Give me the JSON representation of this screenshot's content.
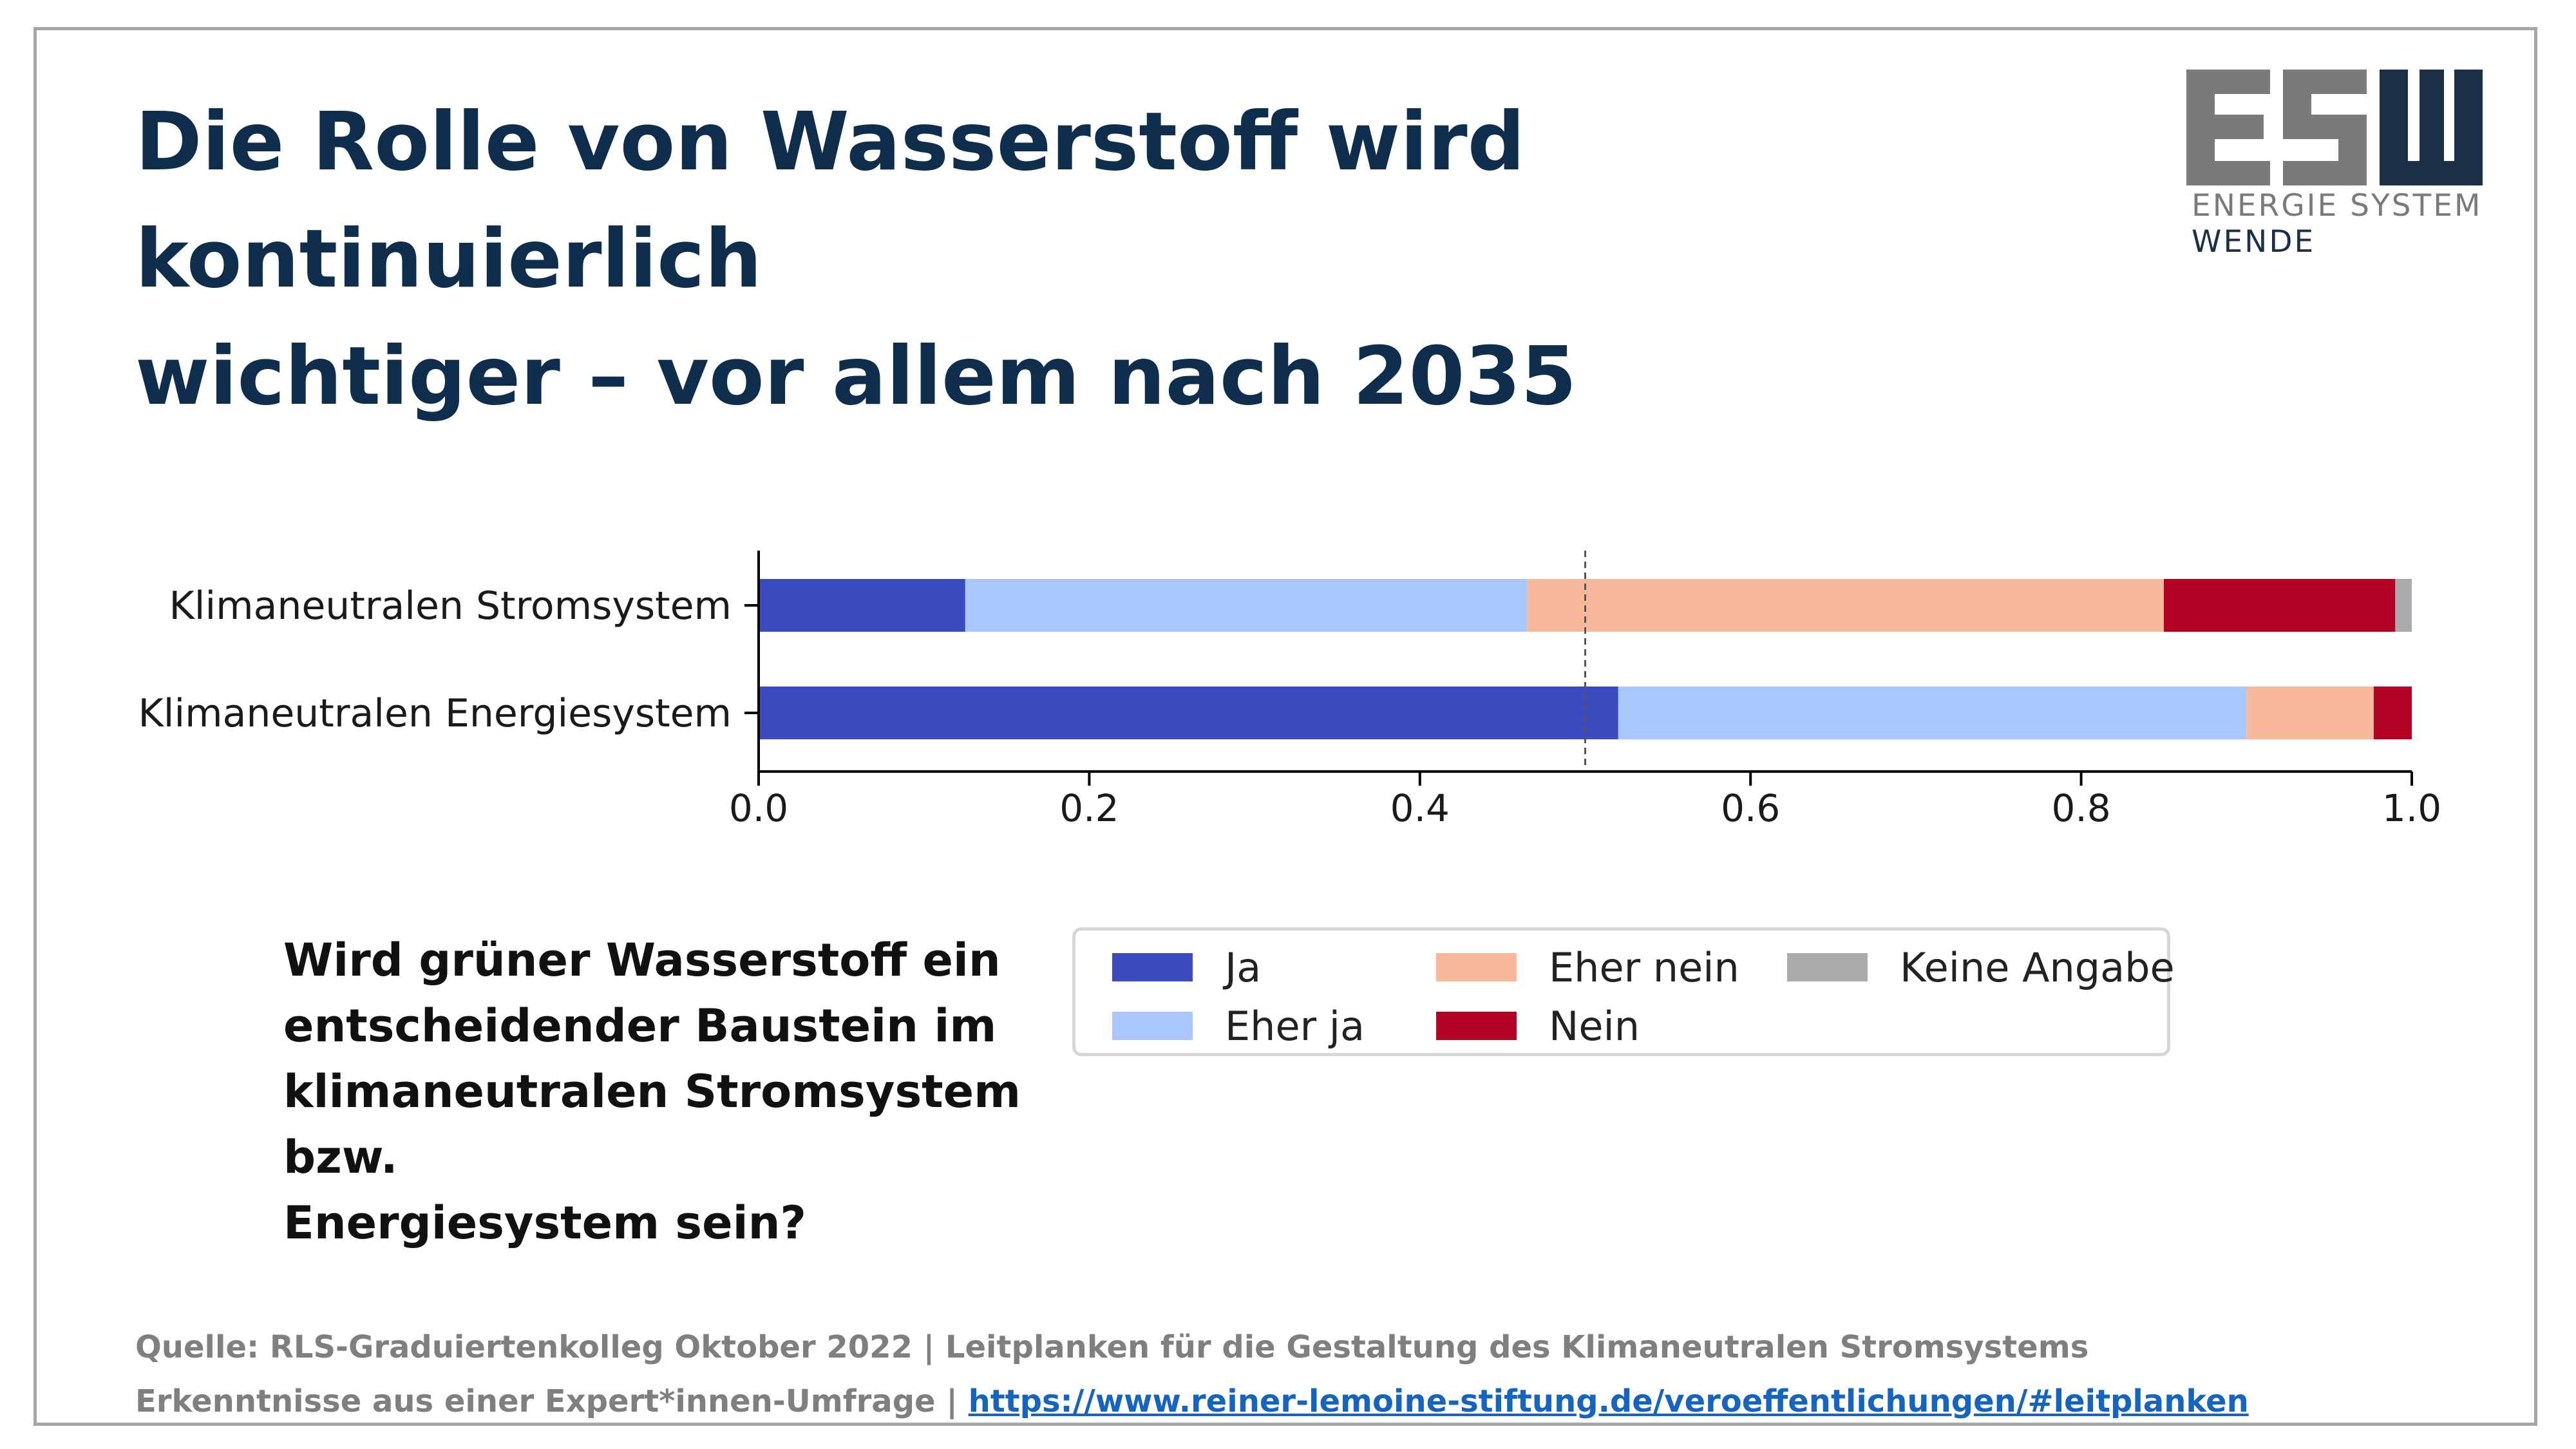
{
  "title": {
    "line1": "Die Rolle von Wasserstoff wird kontinuierlich",
    "line2": "wichtiger – vor allem nach 2035"
  },
  "logo": {
    "mark": "ESW",
    "line1": "ENERGIE SYSTEM",
    "line2": "WENDE",
    "colors": {
      "es": "#7a7a7a",
      "w": "#1b2f49"
    }
  },
  "chart_data": {
    "type": "bar",
    "orientation": "horizontal",
    "stacked": true,
    "categories": [
      "Klimaneutralen Stromsystem",
      "Klimaneutralen Energiesystem"
    ],
    "series": [
      {
        "name": "Ja",
        "color": "#3b4cc0",
        "values": [
          0.125,
          0.52
        ]
      },
      {
        "name": "Eher ja",
        "color": "#aac7fd",
        "values": [
          0.34,
          0.38
        ]
      },
      {
        "name": "Eher nein",
        "color": "#f7b89c",
        "values": [
          0.385,
          0.077
        ]
      },
      {
        "name": "Nein",
        "color": "#b40426",
        "values": [
          0.14,
          0.023
        ]
      },
      {
        "name": "Keine Angabe",
        "color": "#aaaaaa",
        "values": [
          0.01,
          0.0
        ]
      }
    ],
    "xlim": [
      0,
      1.0
    ],
    "xticks": [
      "0.0",
      "0.2",
      "0.4",
      "0.6",
      "0.8",
      "1.0"
    ],
    "reference_line": 0.5,
    "xlabel": "",
    "ylabel": "",
    "grid": false,
    "legend_position": "bottom"
  },
  "question": {
    "lines": [
      "Wird grüner Wasserstoff ein",
      "entscheidender Baustein im",
      "klimaneutralen Stromsystem bzw.",
      "Energiesystem sein?"
    ]
  },
  "source": {
    "line1": "Quelle: RLS-Graduiertenkolleg Oktober 2022 | Leitplanken für die Gestaltung des Klimaneutralen Stromsystems",
    "line2_prefix": "Erkenntnisse aus einer Expert*innen-Umfrage | ",
    "link_text": "https://www.reiner-lemoine-stiftung.de/veroeffentlichungen/#leitplanken"
  }
}
